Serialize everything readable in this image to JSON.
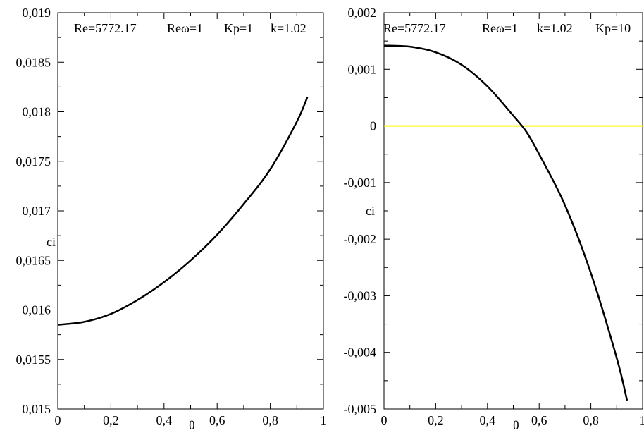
{
  "chart_data": [
    {
      "type": "line",
      "title": "",
      "xlabel": "θ",
      "ylabel": "ci",
      "xlim": [
        0,
        1
      ],
      "ylim": [
        0.015,
        0.019
      ],
      "x_ticks": [
        {
          "value": 0,
          "label": "0"
        },
        {
          "value": 0.2,
          "label": "0,2"
        },
        {
          "value": 0.4,
          "label": "0,4"
        },
        {
          "value": 0.6,
          "label": "0,6"
        },
        {
          "value": 0.8,
          "label": "0,8"
        },
        {
          "value": 1,
          "label": "1"
        }
      ],
      "y_ticks": [
        {
          "value": 0.015,
          "label": "0,015"
        },
        {
          "value": 0.0155,
          "label": "0,0155"
        },
        {
          "value": 0.016,
          "label": "0,016"
        },
        {
          "value": 0.0165,
          "label": "0,0165"
        },
        {
          "value": 0.017,
          "label": "0,017"
        },
        {
          "value": 0.0175,
          "label": "0,0175"
        },
        {
          "value": 0.018,
          "label": "0,018"
        },
        {
          "value": 0.0185,
          "label": "0,0185"
        },
        {
          "value": 0.019,
          "label": "0,019"
        }
      ],
      "annotations": [
        "Re=5772.17",
        "Reω=1",
        "Kp=1",
        "k=1.02"
      ],
      "grid": false,
      "series": [
        {
          "color": "#000000",
          "x": [
            0,
            0.1,
            0.2,
            0.3,
            0.4,
            0.5,
            0.6,
            0.7,
            0.8,
            0.9,
            0.94
          ],
          "y": [
            0.01585,
            0.01588,
            0.01596,
            0.0161,
            0.01628,
            0.0165,
            0.01676,
            0.01707,
            0.01742,
            0.0179,
            0.01815
          ]
        }
      ]
    },
    {
      "type": "line",
      "title": "",
      "xlabel": "θ",
      "ylabel": "ci",
      "xlim": [
        0,
        1
      ],
      "ylim": [
        -0.005,
        0.002
      ],
      "x_ticks": [
        {
          "value": 0,
          "label": "0"
        },
        {
          "value": 0.2,
          "label": "0,2"
        },
        {
          "value": 0.4,
          "label": "0,4"
        },
        {
          "value": 0.6,
          "label": "0,6"
        },
        {
          "value": 0.8,
          "label": "0,8"
        },
        {
          "value": 1,
          "label": "1"
        }
      ],
      "y_ticks": [
        {
          "value": -0.005,
          "label": "-0,005"
        },
        {
          "value": -0.004,
          "label": "-0,004"
        },
        {
          "value": -0.003,
          "label": "-0,003"
        },
        {
          "value": -0.002,
          "label": "-0,002"
        },
        {
          "value": -0.001,
          "label": "-0,001"
        },
        {
          "value": 0,
          "label": "0"
        },
        {
          "value": 0.001,
          "label": "0,001"
        },
        {
          "value": 0.002,
          "label": "0,002"
        }
      ],
      "annotations": [
        "Re=5772.17",
        "Reω=1",
        "k=1.02",
        "Kp=10"
      ],
      "grid": false,
      "reference_line": {
        "y": 0,
        "color": "#ffff00"
      },
      "series": [
        {
          "color": "#000000",
          "x": [
            0,
            0.1,
            0.2,
            0.3,
            0.4,
            0.5,
            0.55,
            0.6,
            0.7,
            0.8,
            0.9,
            0.94
          ],
          "y": [
            0.00142,
            0.0014,
            0.0013,
            0.00108,
            0.0007,
            0.00018,
            -0.0001,
            -0.0005,
            -0.0014,
            -0.0026,
            -0.0041,
            -0.00485
          ]
        }
      ]
    }
  ]
}
